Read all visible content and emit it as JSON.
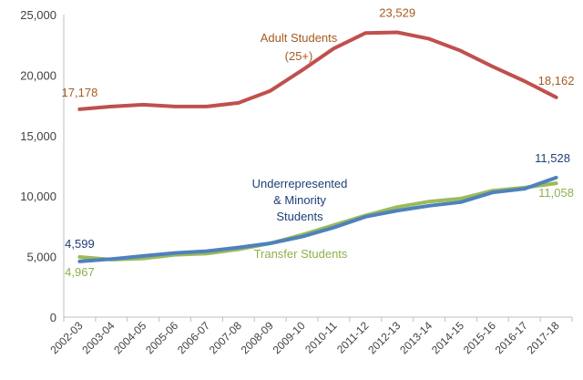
{
  "chart_data": {
    "type": "line",
    "title": "",
    "xlabel": "",
    "ylabel": "",
    "ylim": [
      0,
      25000
    ],
    "yticks": [
      0,
      5000,
      10000,
      15000,
      20000,
      25000
    ],
    "ytick_labels": [
      "0",
      "5,000",
      "10,000",
      "15,000",
      "20,000",
      "25,000"
    ],
    "grid": false,
    "legend": "none (series labelled inline)",
    "categories": [
      "2002-03",
      "2003-04",
      "2004-05",
      "2005-06",
      "2006-07",
      "2007-08",
      "2008-09",
      "2009-10",
      "2010-11",
      "2011-12",
      "2012-13",
      "2013-14",
      "2014-15",
      "2015-16",
      "2016-17",
      "2017-18"
    ],
    "series": [
      {
        "name": "Adult Students (25+)",
        "name_lines": [
          "Adult Students",
          "(25+)"
        ],
        "color": "#c0504d",
        "label_color": "#a65a20",
        "values": [
          17178,
          17400,
          17550,
          17400,
          17400,
          17700,
          18700,
          20400,
          22200,
          23480,
          23529,
          23000,
          22000,
          20700,
          19500,
          18162
        ],
        "data_labels": {
          "first": "17,178",
          "max": "23,529",
          "last": "18,162"
        }
      },
      {
        "name": "Underrepresented & Minority Students",
        "name_lines": [
          "Underrepresented",
          "& Minority",
          "Students"
        ],
        "color": "#4f81bd",
        "label_color": "#1f3f77",
        "values": [
          4599,
          4800,
          5050,
          5300,
          5450,
          5750,
          6100,
          6650,
          7400,
          8300,
          8800,
          9200,
          9500,
          10300,
          10600,
          11528
        ],
        "data_labels": {
          "first": "4,599",
          "last": "11,528"
        }
      },
      {
        "name": "Transfer Students",
        "name_lines": [
          "Transfer Students"
        ],
        "color": "#9bbb59",
        "label_color": "#8fb04a",
        "values": [
          4967,
          4750,
          4850,
          5150,
          5250,
          5600,
          6100,
          6800,
          7600,
          8400,
          9100,
          9550,
          9800,
          10450,
          10700,
          11058
        ],
        "data_labels": {
          "first": "4,967",
          "last": "11,058"
        }
      }
    ]
  }
}
